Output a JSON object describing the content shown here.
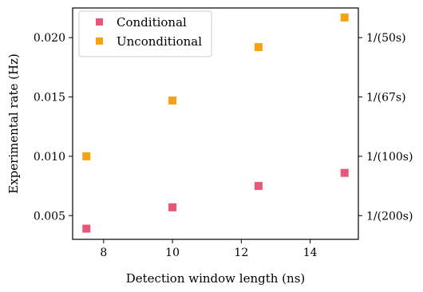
{
  "chart_data": {
    "type": "scatter",
    "xlabel": "Detection window length (ns)",
    "ylabel": "Experimental rate (Hz)",
    "xlim": [
      7.1,
      15.4
    ],
    "ylim": [
      0.003,
      0.0225
    ],
    "xticks": [
      8,
      10,
      12,
      14
    ],
    "xtick_labels": [
      "8",
      "10",
      "12",
      "14"
    ],
    "yticks": [
      0.005,
      0.01,
      0.015,
      0.02
    ],
    "ytick_labels": [
      "0.005",
      "0.010",
      "0.015",
      "0.020"
    ],
    "y2ticks": [
      0.005,
      0.01,
      0.015,
      0.02
    ],
    "y2tick_labels": [
      "1/(200s)",
      "1/(100s)",
      "1/(67s)",
      "1/(50s)"
    ],
    "grid": false,
    "legend_position": "top-left",
    "series": [
      {
        "name": "Conditional",
        "color": "#e8577a",
        "marker": "square",
        "x": [
          7.5,
          10.0,
          12.5,
          15.0
        ],
        "y": [
          0.0039,
          0.0057,
          0.0075,
          0.0086
        ]
      },
      {
        "name": "Unconditional",
        "color": "#f5a313",
        "marker": "square",
        "x": [
          7.5,
          10.0,
          12.5,
          15.0
        ],
        "y": [
          0.01,
          0.0147,
          0.0192,
          0.0217
        ]
      }
    ]
  }
}
